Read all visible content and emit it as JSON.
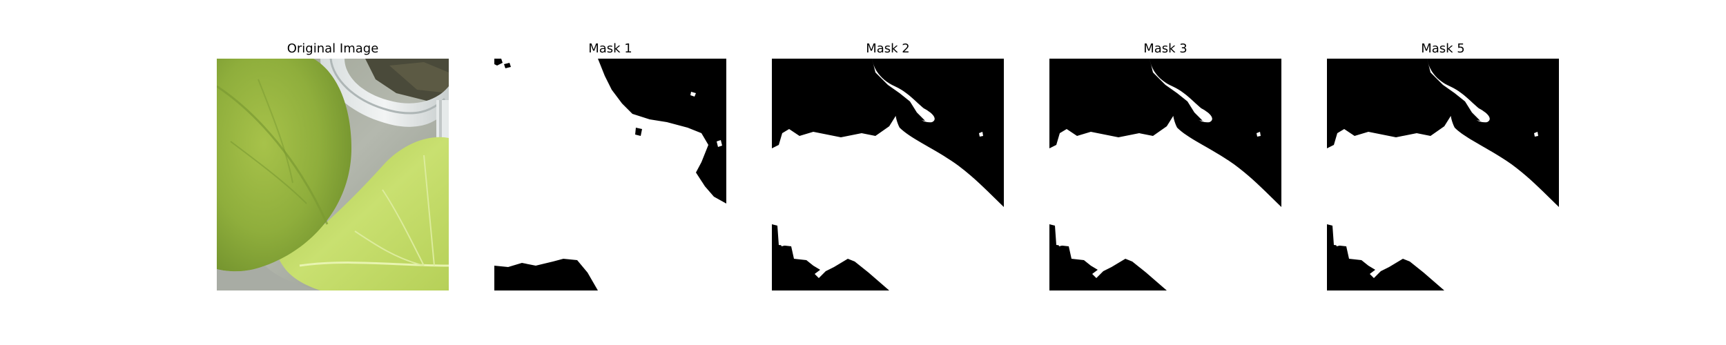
{
  "figure": {
    "panels": [
      {
        "title": "Original Image",
        "kind": "photo"
      },
      {
        "title": "Mask 1",
        "kind": "mask"
      },
      {
        "title": "Mask 2",
        "kind": "mask"
      },
      {
        "title": "Mask 3",
        "kind": "mask"
      },
      {
        "title": "Mask 5",
        "kind": "mask"
      }
    ]
  },
  "colors": {
    "background": "#ffffff",
    "mask_foreground": "#ffffff",
    "mask_background": "#000000",
    "leaf_dark": "#8fae3c",
    "leaf_light": "#c5dc6c",
    "tray_gray": "#b8bcb4"
  }
}
